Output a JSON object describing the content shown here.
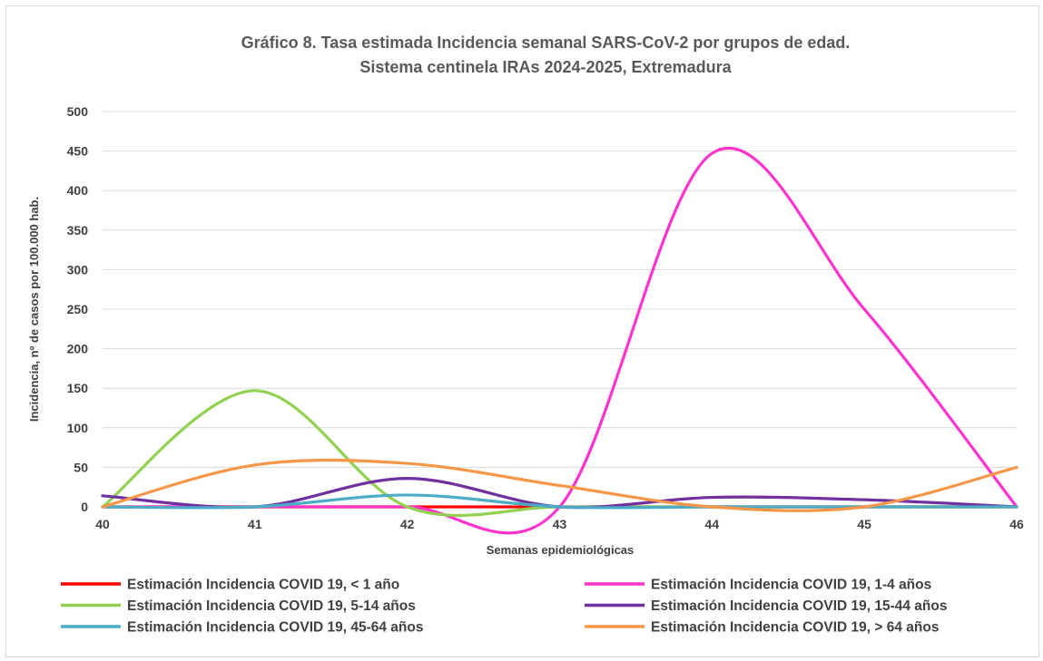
{
  "chart_data": {
    "type": "line",
    "title": "Gráfico 8. Tasa estimada Incidencia semanal SARS-CoV-2 por grupos de edad.",
    "subtitle": "Sistema centinela IRAs 2024-2025, Extremadura",
    "xlabel": "Semanas epidemiológicas",
    "ylabel": "Incidencia, nº de casos por 100.000 hab.",
    "x": [
      40,
      41,
      42,
      43,
      44,
      45,
      46
    ],
    "x_ticks": [
      "40",
      "41",
      "42",
      "43",
      "44",
      "45",
      "46"
    ],
    "y_ticks": [
      "0",
      "50",
      "100",
      "150",
      "200",
      "250",
      "300",
      "350",
      "400",
      "450",
      "500"
    ],
    "ylim": [
      0,
      500
    ],
    "grid": true,
    "smooth": true,
    "legend_position": "bottom",
    "series": [
      {
        "name": "Estimación Incidencia COVID 19, < 1 año",
        "color": "#ff0000",
        "values": [
          0,
          0,
          0,
          0,
          0,
          0,
          0
        ]
      },
      {
        "name": "Estimación Incidencia COVID 19, 1-4 años",
        "color": "#ff33cc",
        "values": [
          0,
          0,
          0,
          0,
          447,
          250,
          0
        ]
      },
      {
        "name": "Estimación Incidencia COVID 19, 5-14 años",
        "color": "#92d050",
        "values": [
          0,
          147,
          0,
          0,
          0,
          0,
          0
        ]
      },
      {
        "name": "Estimación Incidencia COVID 19, 15-44 años",
        "color": "#7030a0",
        "values": [
          14,
          0,
          36,
          0,
          12,
          9,
          0
        ]
      },
      {
        "name": "Estimación Incidencia COVID 19, 45-64 años",
        "color": "#4bacc6",
        "values": [
          0,
          0,
          15,
          0,
          0,
          0,
          0
        ]
      },
      {
        "name": "Estimación Incidencia COVID 19, > 64 años",
        "color": "#f79646",
        "values": [
          0,
          53,
          55,
          27,
          0,
          0,
          50
        ]
      }
    ]
  }
}
